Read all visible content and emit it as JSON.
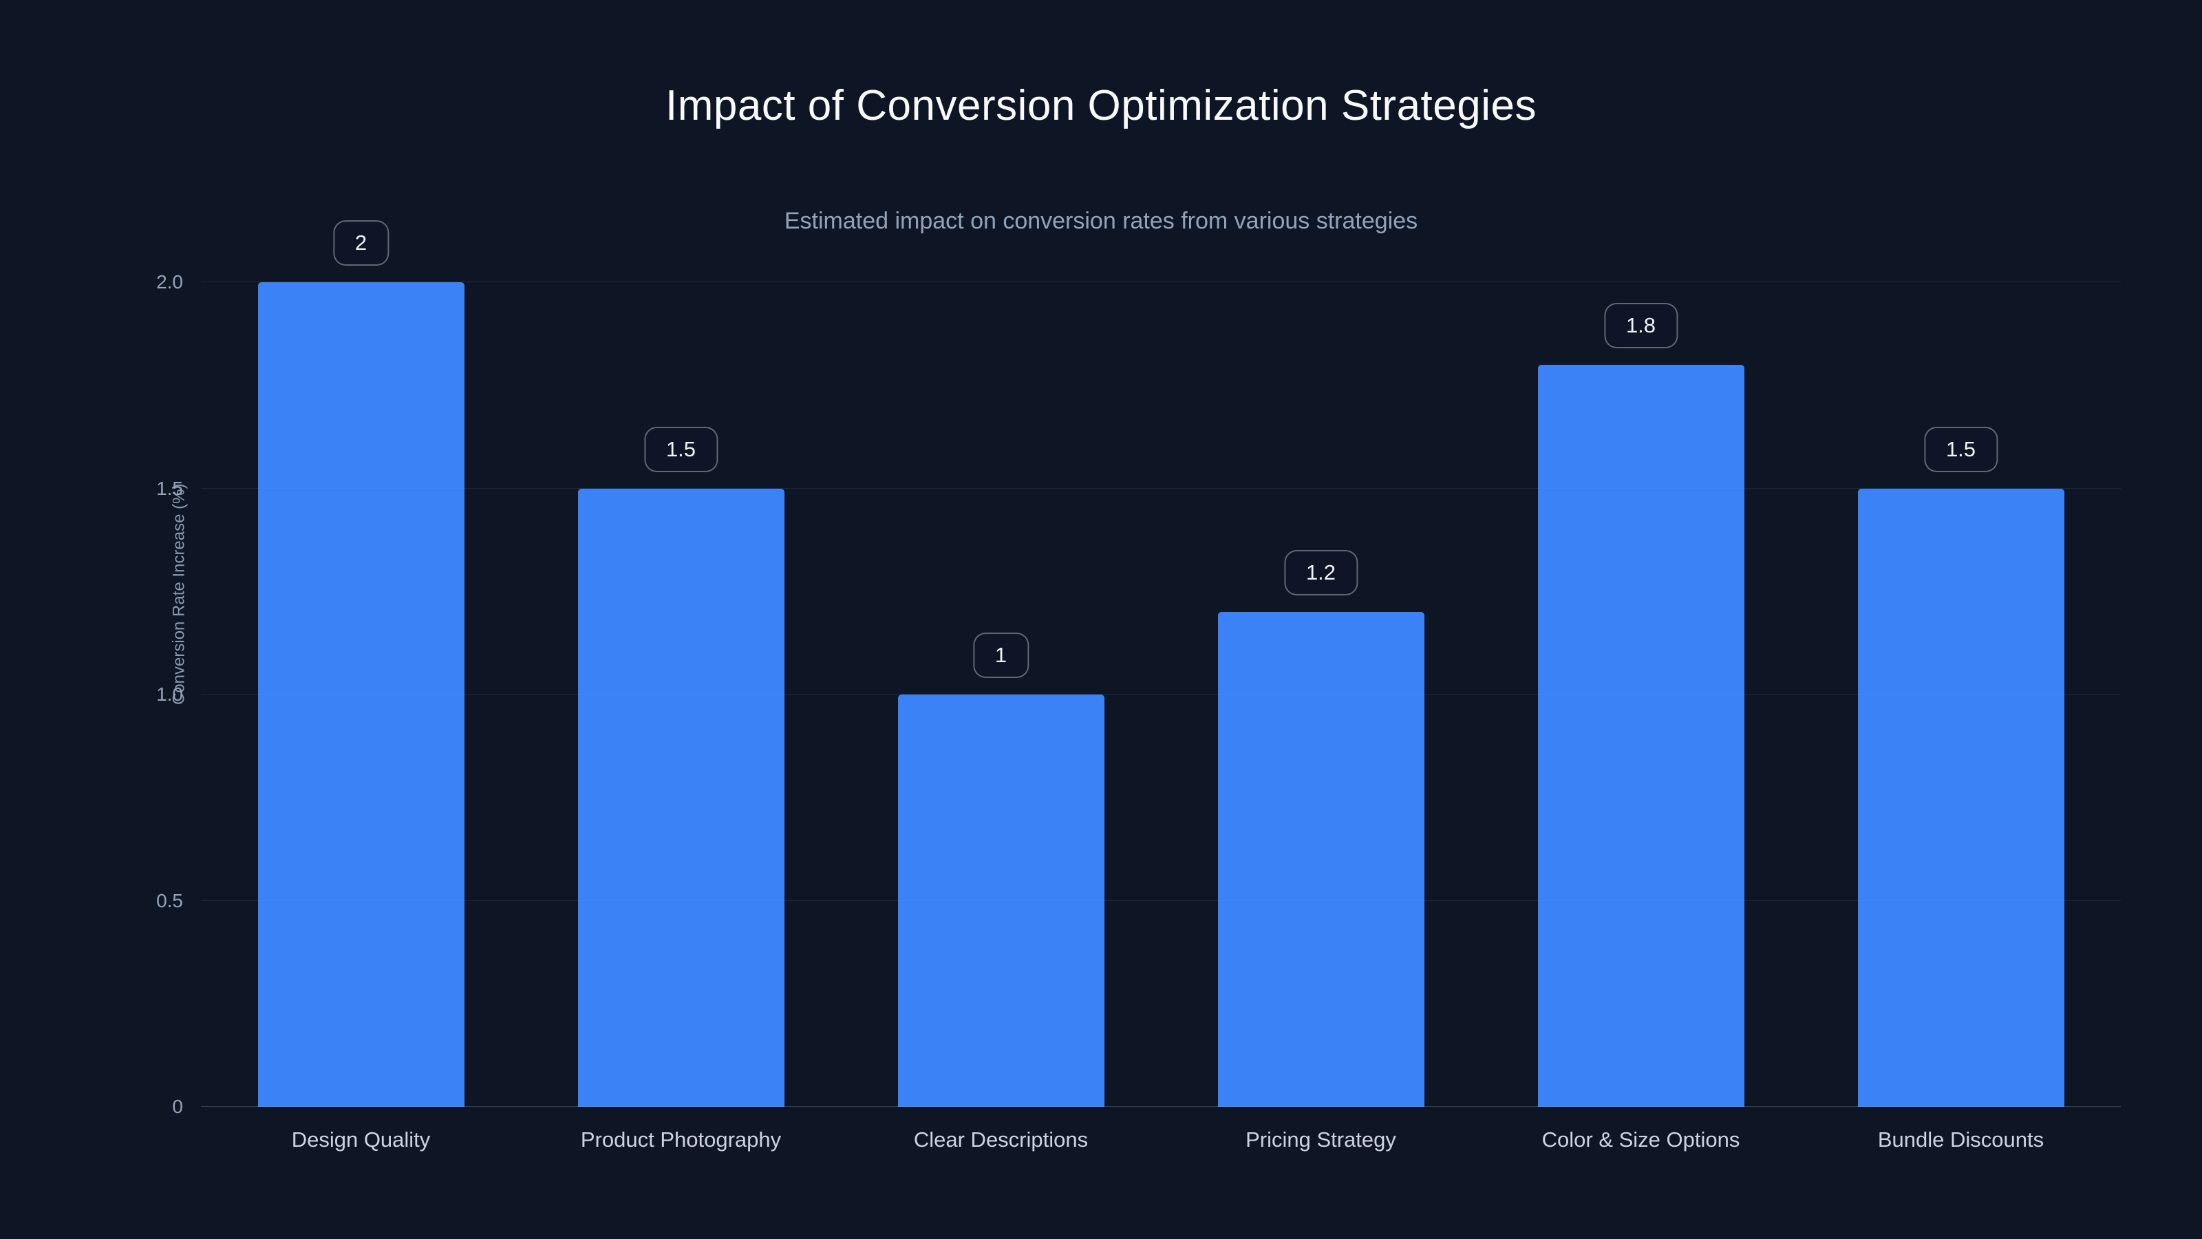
{
  "colors": {
    "background": "#0e1626",
    "bar": "#3b82f6",
    "title_text": "#f8fafc",
    "muted_text": "#94a3b8"
  },
  "chart_data": {
    "type": "bar",
    "title": "Impact of Conversion Optimization Strategies",
    "subtitle": "Estimated impact on conversion rates from various strategies",
    "ylabel": "Conversion Rate Increase (%)",
    "xlabel": "",
    "categories": [
      "Design Quality",
      "Product Photography",
      "Clear Descriptions",
      "Pricing Strategy",
      "Color & Size Options",
      "Bundle Discounts"
    ],
    "values": [
      2,
      1.5,
      1,
      1.2,
      1.8,
      1.5
    ],
    "value_labels": [
      "2",
      "1.5",
      "1",
      "1.2",
      "1.8",
      "1.5"
    ],
    "ylim": [
      0,
      2.0
    ],
    "yticks": [
      {
        "value": 0,
        "label": "0"
      },
      {
        "value": 0.5,
        "label": "0.5"
      },
      {
        "value": 1.0,
        "label": "1.0"
      },
      {
        "value": 1.5,
        "label": "1.5"
      },
      {
        "value": 2.0,
        "label": "2.0"
      }
    ],
    "grid": "horizontal",
    "legend": "none"
  }
}
